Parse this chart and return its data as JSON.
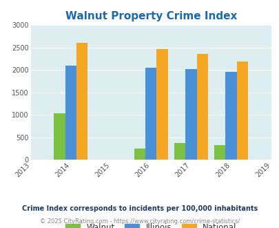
{
  "title": "Walnut Property Crime Index",
  "years": [
    2013,
    2014,
    2015,
    2016,
    2017,
    2018,
    2019
  ],
  "data_years": [
    2014,
    2016,
    2017,
    2018
  ],
  "walnut": [
    1025,
    250,
    375,
    320
  ],
  "illinois": [
    2090,
    2050,
    2020,
    1950
  ],
  "national": [
    2600,
    2460,
    2360,
    2190
  ],
  "walnut_color": "#7dc142",
  "illinois_color": "#4a90d9",
  "national_color": "#f5a623",
  "bg_color": "#ddeef0",
  "ylim": [
    0,
    3000
  ],
  "yticks": [
    0,
    500,
    1000,
    1500,
    2000,
    2500,
    3000
  ],
  "legend_labels": [
    "Walnut",
    "Illinois",
    "National"
  ],
  "footnote1": "Crime Index corresponds to incidents per 100,000 inhabitants",
  "footnote2": "© 2025 CityRating.com - https://www.cityrating.com/crime-statistics/",
  "title_color": "#1a6aad",
  "footnote1_color": "#1a3a6a",
  "footnote2_color": "#888888",
  "url_color": "#4a90d9",
  "bar_width": 0.28
}
